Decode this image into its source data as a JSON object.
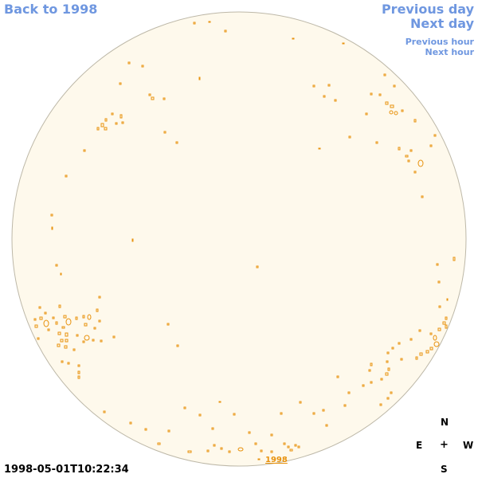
{
  "nav": {
    "back_label": "Back to 1998",
    "prev_day_label": "Previous day",
    "next_day_label": "Next day",
    "prev_hour_label": "Previous hour",
    "next_hour_label": "Next hour"
  },
  "observation": {
    "timestamp": "1998-05-01T10:22:34",
    "year_label": "1998"
  },
  "compass": {
    "north": "N",
    "east": "E",
    "center": "+",
    "west": "W",
    "south": "S"
  },
  "colors": {
    "disk_fill": "#fef9ec",
    "disk_edge": "#bdb8a8",
    "contour": "#e8920e",
    "link": "#6f97e0"
  }
}
